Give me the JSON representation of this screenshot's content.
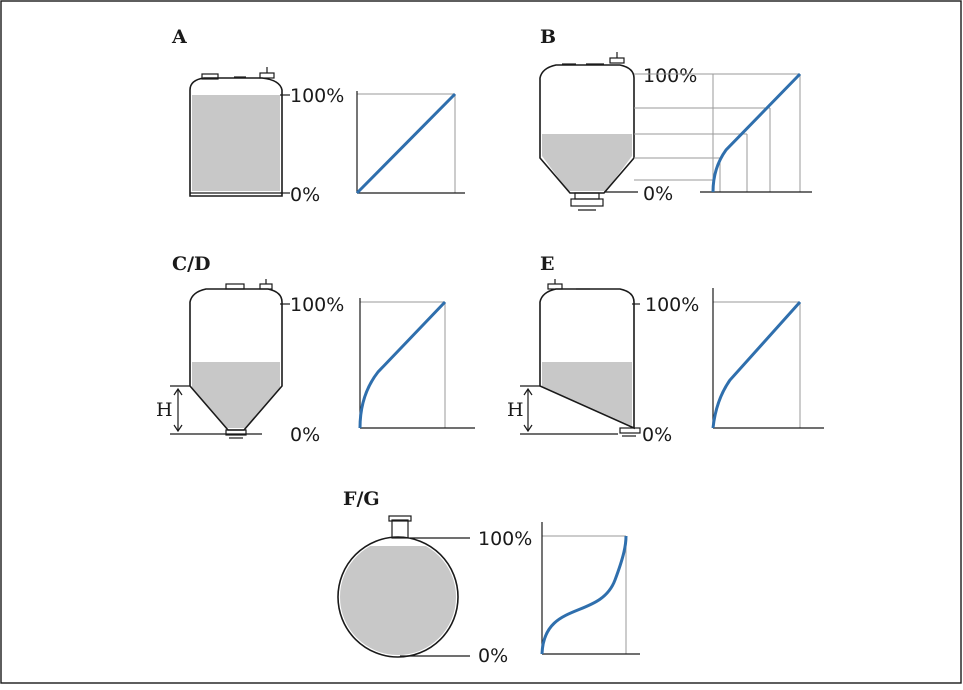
{
  "panels": {
    "a": {
      "title": "A",
      "top_label": "100%",
      "bottom_label": "0%"
    },
    "b": {
      "title": "B",
      "top_label": "100%",
      "bottom_label": "0%"
    },
    "cd": {
      "title": "C/D",
      "top_label": "100%",
      "bottom_label": "0%",
      "height_label": "H"
    },
    "e": {
      "title": "E",
      "top_label": "100%",
      "bottom_label": "0%",
      "height_label": "H"
    },
    "fg": {
      "title": "F/G",
      "top_label": "100%",
      "bottom_label": "0%"
    }
  },
  "colors": {
    "curve": "#2f6fad",
    "fill": "#c8c8c8",
    "line": "#1a1a1a"
  }
}
